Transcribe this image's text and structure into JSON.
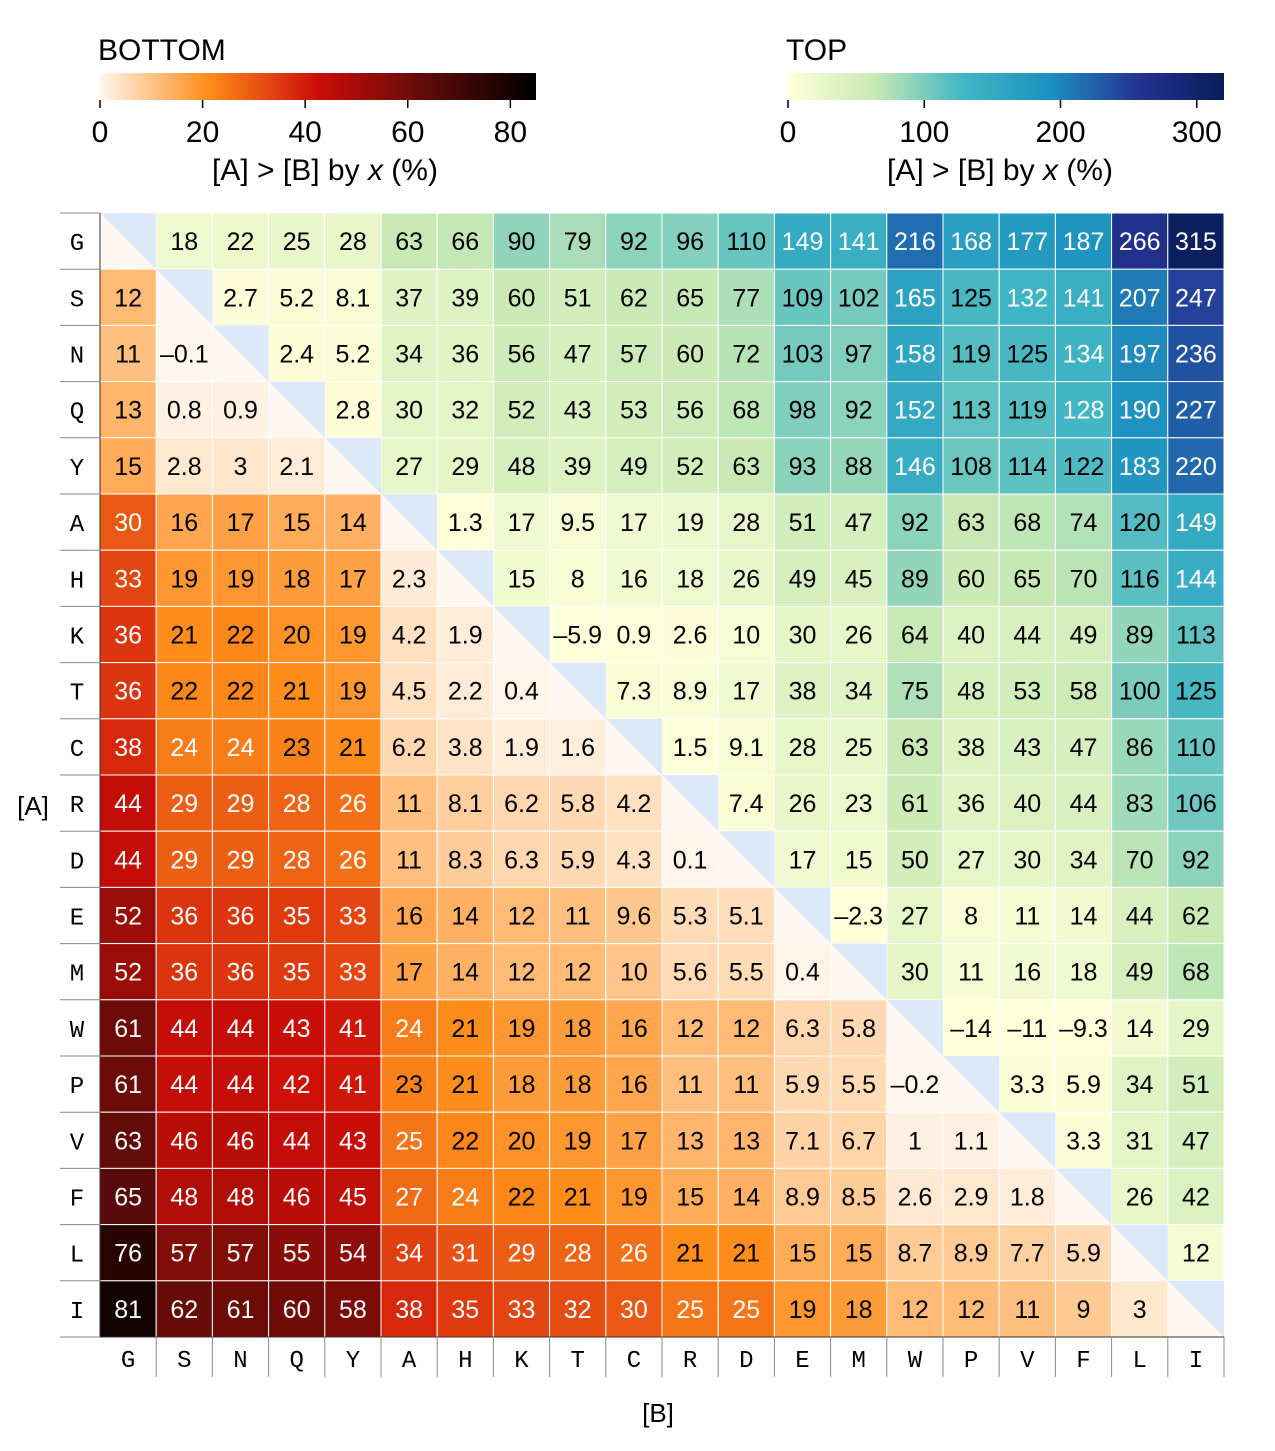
{
  "chart_data": {
    "type": "heatmap",
    "title": "",
    "xlabel": "[B]",
    "ylabel": "[A]",
    "labels": [
      "G",
      "S",
      "N",
      "Q",
      "Y",
      "A",
      "H",
      "K",
      "T",
      "C",
      "R",
      "D",
      "E",
      "M",
      "W",
      "P",
      "V",
      "F",
      "L",
      "I"
    ],
    "bottom_colorbar": {
      "title": "BOTTOM",
      "label_prefix": "[A] > [B] by ",
      "label_var": "x",
      "label_suffix": " (%)",
      "range": [
        0,
        85
      ],
      "ticks": [
        "0",
        "20",
        "40",
        "60",
        "80"
      ],
      "tick_values": [
        0,
        20,
        40,
        60,
        80
      ],
      "colors": [
        "#fff6ec",
        "#ff8c1a",
        "#cc0d08",
        "#5e0b08",
        "#000000"
      ]
    },
    "top_colorbar": {
      "title": "TOP",
      "label_prefix": "[A] > [B] by ",
      "label_var": "x",
      "label_suffix": " (%)",
      "range": [
        0,
        320
      ],
      "ticks": [
        "0",
        "100",
        "200",
        "300"
      ],
      "tick_values": [
        0,
        100,
        200,
        300
      ],
      "colors": [
        "#ffffd9",
        "#c7e9b4",
        "#41b6c4",
        "#1d91c0",
        "#253494",
        "#081d58"
      ]
    },
    "diagonal_color": "#dbe9fb",
    "rows": [
      [
        null,
        "18",
        "22",
        "25",
        "28",
        "63",
        "66",
        "90",
        "79",
        "92",
        "96",
        "110",
        "149",
        "141",
        "216",
        "168",
        "177",
        "187",
        "266",
        "315"
      ],
      [
        "12",
        null,
        "2.7",
        "5.2",
        "8.1",
        "37",
        "39",
        "60",
        "51",
        "62",
        "65",
        "77",
        "109",
        "102",
        "165",
        "125",
        "132",
        "141",
        "207",
        "247"
      ],
      [
        "11",
        "–0.1",
        null,
        "2.4",
        "5.2",
        "34",
        "36",
        "56",
        "47",
        "57",
        "60",
        "72",
        "103",
        "97",
        "158",
        "119",
        "125",
        "134",
        "197",
        "236"
      ],
      [
        "13",
        "0.8",
        "0.9",
        null,
        "2.8",
        "30",
        "32",
        "52",
        "43",
        "53",
        "56",
        "68",
        "98",
        "92",
        "152",
        "113",
        "119",
        "128",
        "190",
        "227"
      ],
      [
        "15",
        "2.8",
        "3",
        "2.1",
        null,
        "27",
        "29",
        "48",
        "39",
        "49",
        "52",
        "63",
        "93",
        "88",
        "146",
        "108",
        "114",
        "122",
        "183",
        "220"
      ],
      [
        "30",
        "16",
        "17",
        "15",
        "14",
        null,
        "1.3",
        "17",
        "9.5",
        "17",
        "19",
        "28",
        "51",
        "47",
        "92",
        "63",
        "68",
        "74",
        "120",
        "149"
      ],
      [
        "33",
        "19",
        "19",
        "18",
        "17",
        "2.3",
        null,
        "15",
        "8",
        "16",
        "18",
        "26",
        "49",
        "45",
        "89",
        "60",
        "65",
        "70",
        "116",
        "144"
      ],
      [
        "36",
        "21",
        "22",
        "20",
        "19",
        "4.2",
        "1.9",
        null,
        "–5.9",
        "0.9",
        "2.6",
        "10",
        "30",
        "26",
        "64",
        "40",
        "44",
        "49",
        "89",
        "113"
      ],
      [
        "36",
        "22",
        "22",
        "21",
        "19",
        "4.5",
        "2.2",
        "0.4",
        null,
        "7.3",
        "8.9",
        "17",
        "38",
        "34",
        "75",
        "48",
        "53",
        "58",
        "100",
        "125"
      ],
      [
        "38",
        "24",
        "24",
        "23",
        "21",
        "6.2",
        "3.8",
        "1.9",
        "1.6",
        null,
        "1.5",
        "9.1",
        "28",
        "25",
        "63",
        "38",
        "43",
        "47",
        "86",
        "110"
      ],
      [
        "44",
        "29",
        "29",
        "28",
        "26",
        "11",
        "8.1",
        "6.2",
        "5.8",
        "4.2",
        null,
        "7.4",
        "26",
        "23",
        "61",
        "36",
        "40",
        "44",
        "83",
        "106"
      ],
      [
        "44",
        "29",
        "29",
        "28",
        "26",
        "11",
        "8.3",
        "6.3",
        "5.9",
        "4.3",
        "0.1",
        null,
        "17",
        "15",
        "50",
        "27",
        "30",
        "34",
        "70",
        "92"
      ],
      [
        "52",
        "36",
        "36",
        "35",
        "33",
        "16",
        "14",
        "12",
        "11",
        "9.6",
        "5.3",
        "5.1",
        null,
        "–2.3",
        "27",
        "8",
        "11",
        "14",
        "44",
        "62"
      ],
      [
        "52",
        "36",
        "36",
        "35",
        "33",
        "17",
        "14",
        "12",
        "12",
        "10",
        "5.6",
        "5.5",
        "0.4",
        null,
        "30",
        "11",
        "16",
        "18",
        "49",
        "68"
      ],
      [
        "61",
        "44",
        "44",
        "43",
        "41",
        "24",
        "21",
        "19",
        "18",
        "16",
        "12",
        "12",
        "6.3",
        "5.8",
        null,
        "–14",
        "–11",
        "–9.3",
        "14",
        "29"
      ],
      [
        "61",
        "44",
        "44",
        "42",
        "41",
        "23",
        "21",
        "18",
        "18",
        "16",
        "11",
        "11",
        "5.9",
        "5.5",
        "–0.2",
        null,
        "3.3",
        "5.9",
        "34",
        "51"
      ],
      [
        "63",
        "46",
        "46",
        "44",
        "43",
        "25",
        "22",
        "20",
        "19",
        "17",
        "13",
        "13",
        "7.1",
        "6.7",
        "1",
        "1.1",
        null,
        "3.3",
        "31",
        "47"
      ],
      [
        "65",
        "48",
        "48",
        "46",
        "45",
        "27",
        "24",
        "22",
        "21",
        "19",
        "15",
        "14",
        "8.9",
        "8.5",
        "2.6",
        "2.9",
        "1.8",
        null,
        "26",
        "42"
      ],
      [
        "76",
        "57",
        "57",
        "55",
        "54",
        "34",
        "31",
        "29",
        "28",
        "26",
        "21",
        "21",
        "15",
        "15",
        "8.7",
        "8.9",
        "7.7",
        "5.9",
        null,
        "12"
      ],
      [
        "81",
        "62",
        "61",
        "60",
        "58",
        "38",
        "35",
        "33",
        "32",
        "30",
        "25",
        "25",
        "19",
        "18",
        "12",
        "12",
        "11",
        "9",
        "3",
        null
      ]
    ]
  }
}
